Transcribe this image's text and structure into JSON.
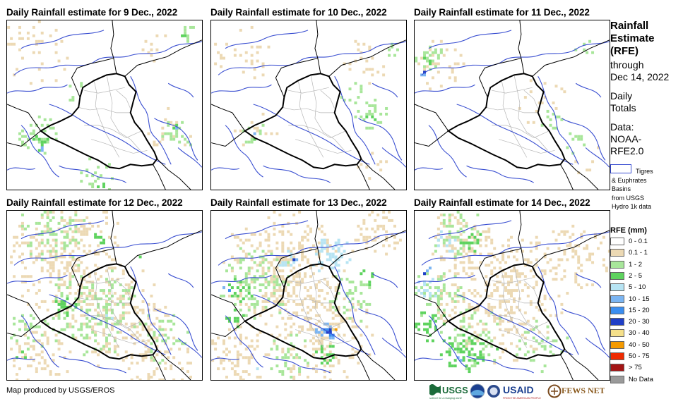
{
  "panels": [
    {
      "title": "Daily Rainfall estimate for 9 Dec., 2022",
      "icon": "rainfall-map"
    },
    {
      "title": "Daily Rainfall estimate for 10 Dec., 2022",
      "icon": "rainfall-map"
    },
    {
      "title": "Daily Rainfall estimate for 11 Dec., 2022",
      "icon": "rainfall-map"
    },
    {
      "title": "Daily Rainfall estimate for 12 Dec., 2022",
      "icon": "rainfall-map"
    },
    {
      "title": "Daily Rainfall estimate for 13 Dec., 2022",
      "icon": "rainfall-map"
    },
    {
      "title": "Daily Rainfall estimate for 14 Dec., 2022",
      "icon": "rainfall-map"
    }
  ],
  "side": {
    "title_lines": [
      "Rainfall",
      "Estimate",
      "(RFE)"
    ],
    "through": "through",
    "date": "Dec 14, 2022",
    "daily": "Daily",
    "totals": "Totals",
    "data_label": "Data:",
    "data_source_1": "NOAA-",
    "data_source_2": "RFE2.0",
    "basin_lines": [
      "Tigres",
      "& Euphrates",
      "Basins",
      "from USGS",
      "Hydro 1k data"
    ],
    "basin_color": "#3a4fd1"
  },
  "legend": {
    "title": "RFE (mm)",
    "items": [
      {
        "label": "0 - 0.1",
        "color": "#ffffff"
      },
      {
        "label": "0.1 - 1",
        "color": "#ecd9b4"
      },
      {
        "label": "1 - 2",
        "color": "#a8e69a"
      },
      {
        "label": "2 - 5",
        "color": "#5ed35e"
      },
      {
        "label": "5 - 10",
        "color": "#b7e4f3"
      },
      {
        "label": "10 - 15",
        "color": "#7bb5f2"
      },
      {
        "label": "15 - 20",
        "color": "#3b8ef0"
      },
      {
        "label": "20 - 30",
        "color": "#1f3fc7"
      },
      {
        "label": "30 - 40",
        "color": "#f5e08a"
      },
      {
        "label": "40 - 50",
        "color": "#f59a00"
      },
      {
        "label": "50 - 75",
        "color": "#ee2a00"
      },
      {
        "label": "> 75",
        "color": "#a31414"
      },
      {
        "label": "No Data",
        "color": "#9a9a9a"
      }
    ]
  },
  "credit": "Map produced by USGS/EROS",
  "logos": {
    "usgs": "USGS",
    "usgs_tagline": "science for a changing world",
    "usaid": "USAID",
    "usaid_tagline": "FROM THE AMERICAN PEOPLE",
    "fews": "FEWS NET"
  }
}
